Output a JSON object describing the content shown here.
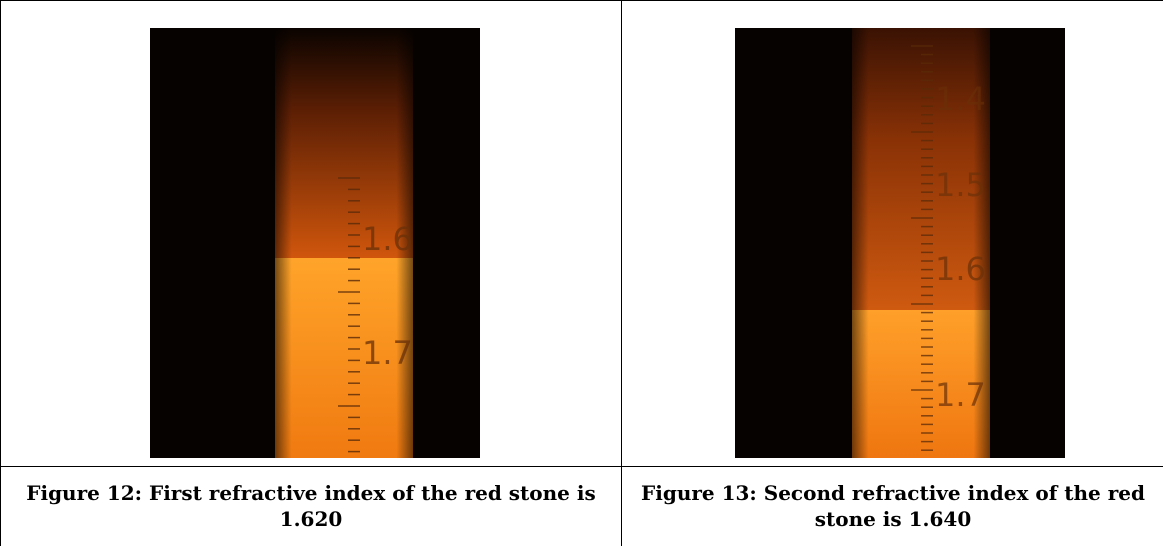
{
  "figures": [
    {
      "caption": "Figure 12: First refractive index of the red stone is 1.620",
      "image": {
        "description": "refractometer-scale-photo",
        "scale_labels": [
          "1.6",
          "1.7"
        ],
        "shadow_edge_reading": 1.62
      }
    },
    {
      "caption": "Figure 13: Second refractive index of the red stone is 1.640",
      "image": {
        "description": "refractometer-scale-photo",
        "scale_labels": [
          "1.4",
          "1.5",
          "1.6",
          "1.7"
        ],
        "shadow_edge_reading": 1.64
      }
    }
  ],
  "colors": {
    "dark_field": "#050200",
    "shadow_orange": "#b8480a",
    "bright_orange": "#ff9a1e",
    "scale_marks": "#5a2a08"
  }
}
